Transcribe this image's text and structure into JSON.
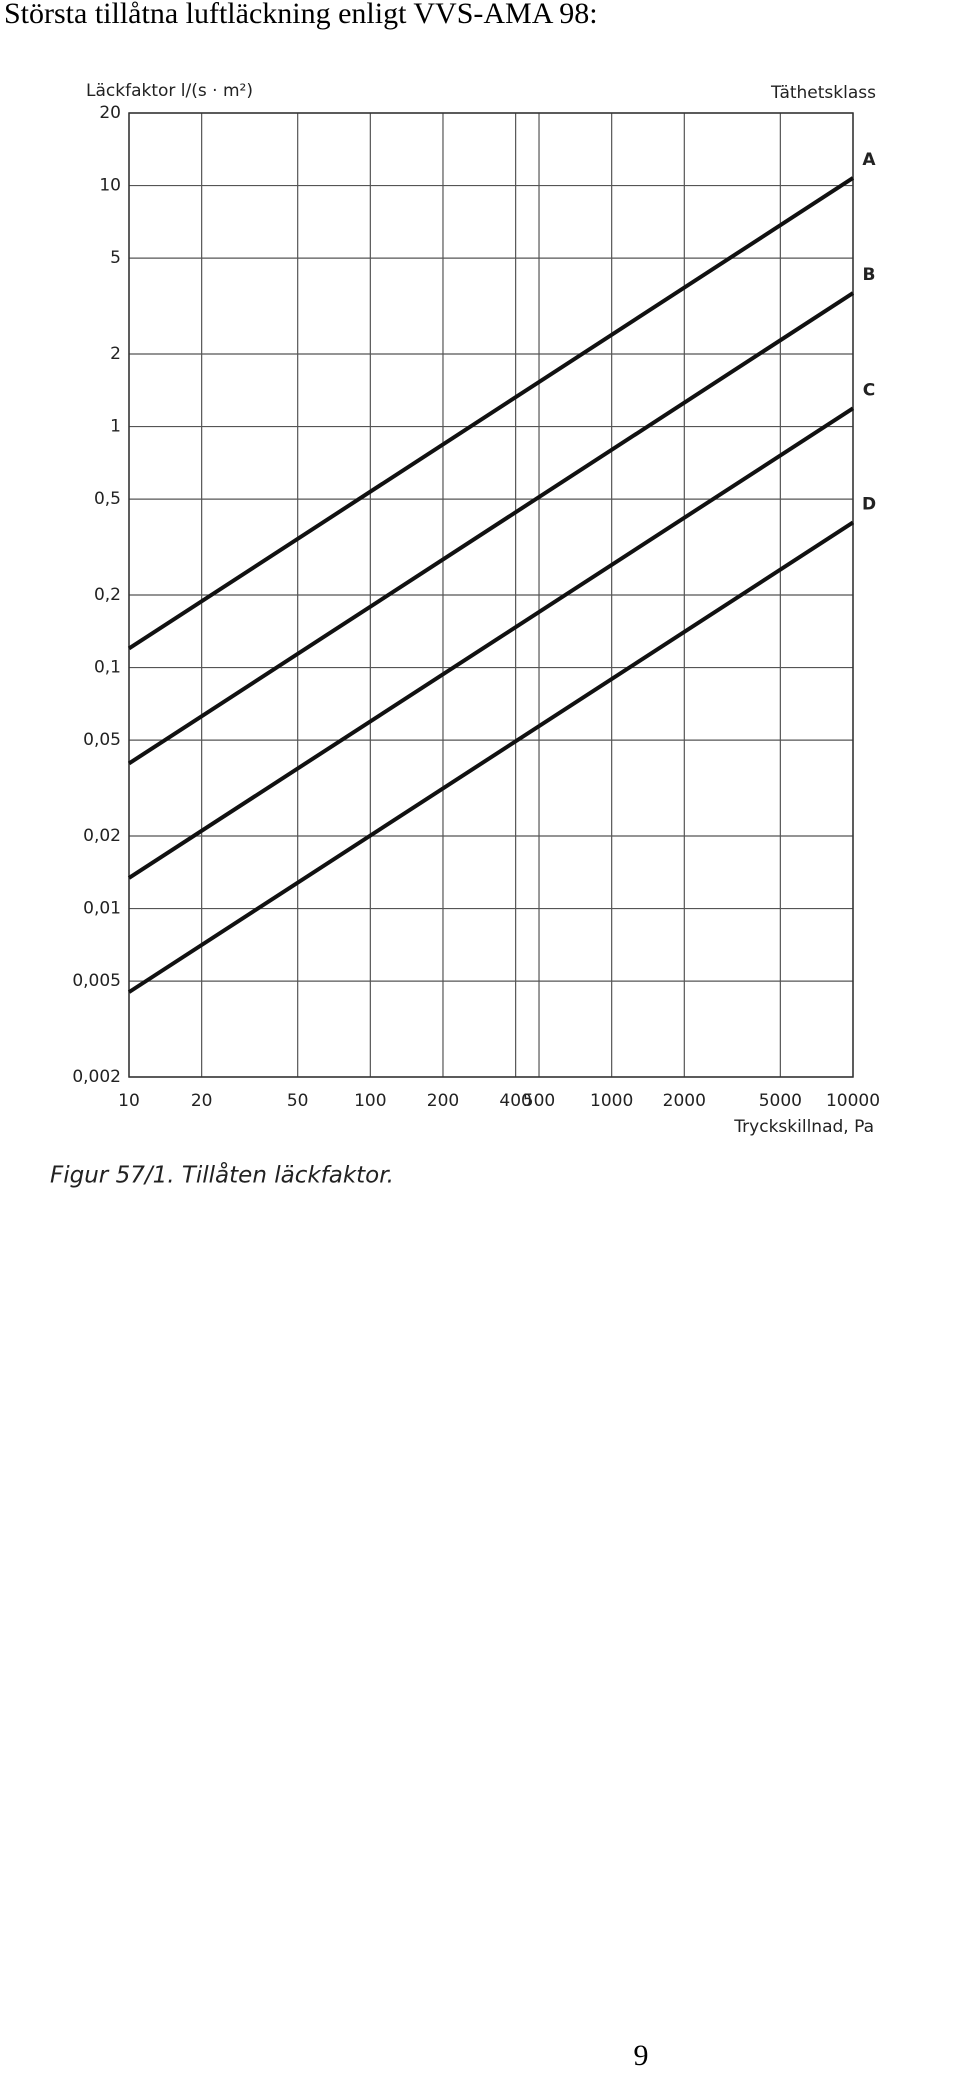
{
  "heading": "Största tillåtna luftläckning enligt VVS-AMA 98:",
  "chart_data": {
    "type": "line",
    "y_label": "Läckfaktor l/(s · m²)",
    "legend_title": "Täthetsklass",
    "x_label": "Tryckskillnad, Pa",
    "x": [
      10,
      10000
    ],
    "series": [
      {
        "name": "A",
        "color": "#111111",
        "values": [
          0.12,
          10.75
        ]
      },
      {
        "name": "B",
        "color": "#111111",
        "values": [
          0.04,
          3.58
        ]
      },
      {
        "name": "C",
        "color": "#111111",
        "values": [
          0.0134,
          1.19
        ]
      },
      {
        "name": "D",
        "color": "#111111",
        "values": [
          0.0045,
          0.4
        ]
      }
    ],
    "xlim": [
      10,
      10000
    ],
    "ylim": [
      0.002,
      20
    ],
    "xscale": "log",
    "yscale": "log",
    "xticks": [
      10,
      20,
      50,
      100,
      200,
      400,
      500,
      1000,
      2000,
      5000,
      10000
    ],
    "yticks": [
      {
        "value": 0.002,
        "label": "0,002"
      },
      {
        "value": 0.005,
        "label": "0,005"
      },
      {
        "value": 0.01,
        "label": "0,01"
      },
      {
        "value": 0.02,
        "label": "0,02"
      },
      {
        "value": 0.05,
        "label": "0,05"
      },
      {
        "value": 0.1,
        "label": "0,1"
      },
      {
        "value": 0.2,
        "label": "0,2"
      },
      {
        "value": 0.5,
        "label": "0,5"
      },
      1,
      2,
      5,
      10,
      20
    ],
    "grid": true
  },
  "caption": "Figur 57/1. Tillåten läckfaktor.",
  "page_number": "9"
}
